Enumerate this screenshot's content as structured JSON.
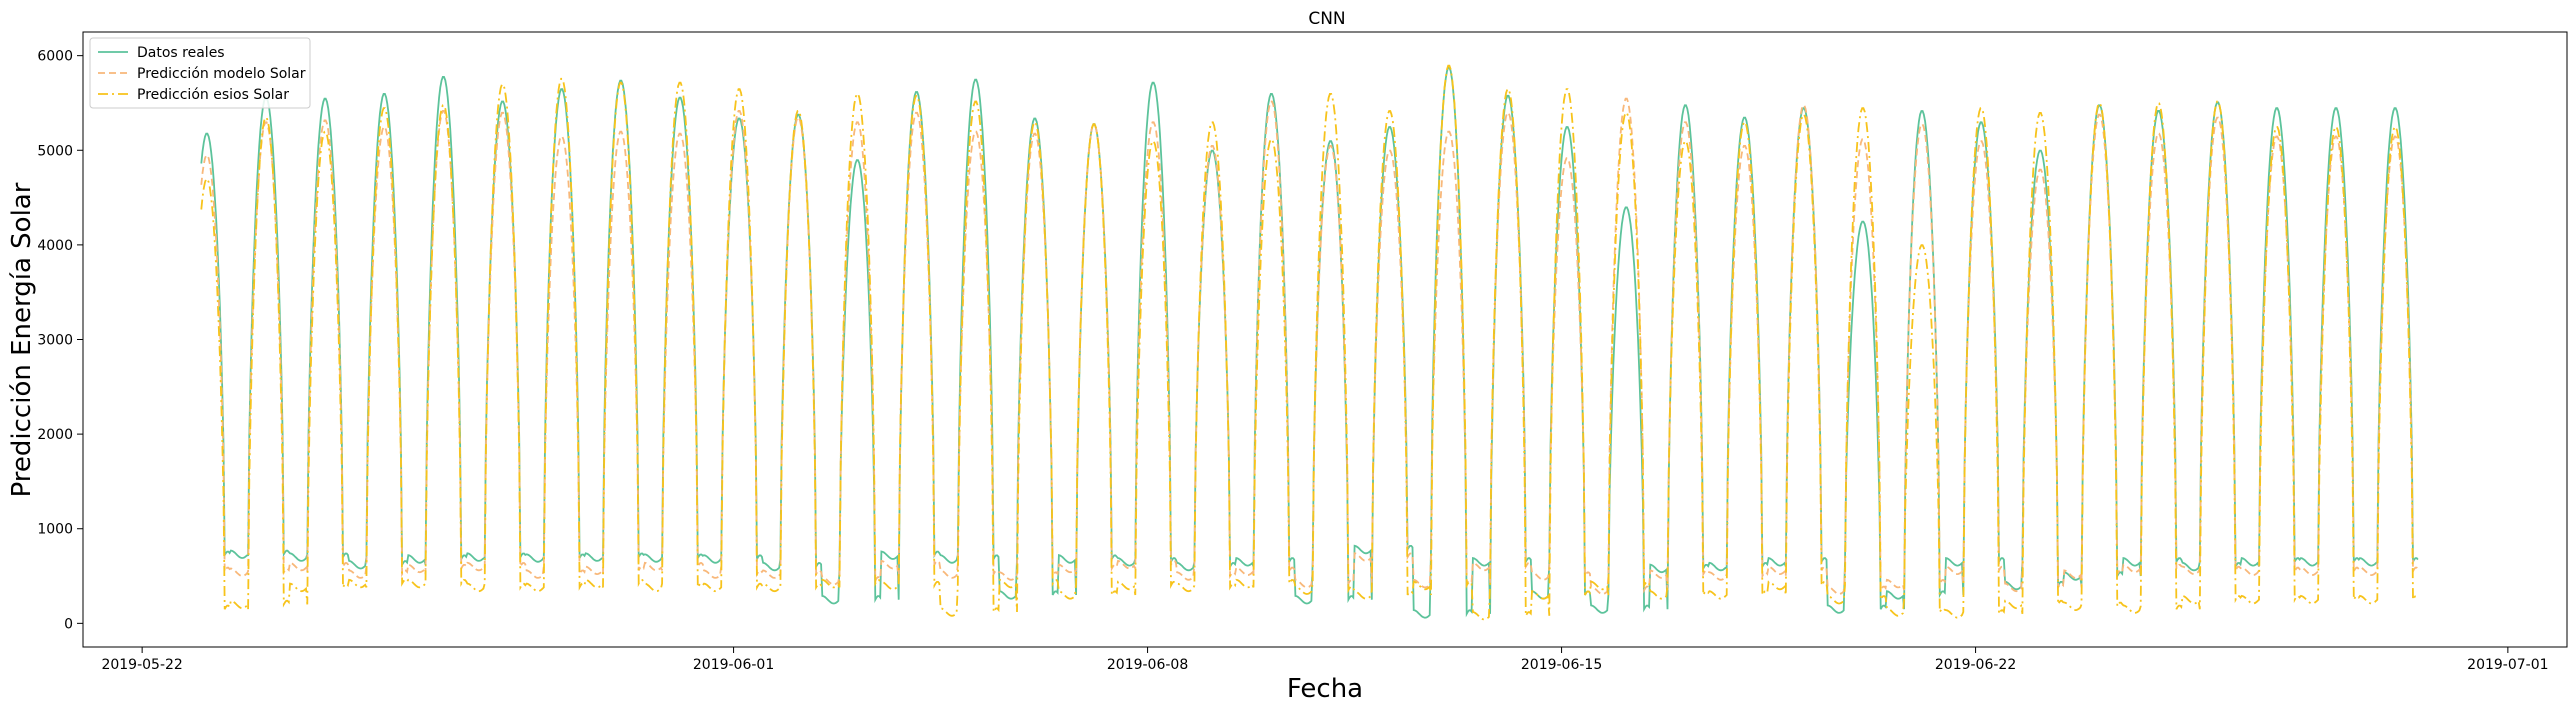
{
  "chart_data": {
    "type": "line",
    "title": "CNN",
    "xlabel": "Fecha",
    "ylabel": "Predicción Energía Solar",
    "xlim": [
      "2019-05-21",
      "2019-07-02"
    ],
    "ylim": [
      -250,
      6250
    ],
    "x_ticks": [
      "2019-05-22",
      "2019-06-01",
      "2019-06-08",
      "2019-06-15",
      "2019-06-22",
      "2019-07-01"
    ],
    "y_ticks": [
      0,
      1000,
      2000,
      3000,
      4000,
      5000,
      6000
    ],
    "grid": false,
    "legend_position": "top-left",
    "x_start": "2019-05-23",
    "x_end": "2019-06-30",
    "series": [
      {
        "name": "Datos reales",
        "color": "#5cc39b",
        "style": "solid",
        "daily_peaks": [
          5180,
          5560,
          5550,
          5600,
          5780,
          5520,
          5650,
          5740,
          5560,
          5340,
          5380,
          4900,
          5620,
          5750,
          5340,
          5280,
          5720,
          5000,
          5600,
          5100,
          5250,
          5880,
          5580,
          5250,
          4400,
          5480,
          5350,
          5450,
          4250,
          5420,
          5300,
          5000,
          5480,
          5420,
          5510,
          5450
        ],
        "daily_troughs": [
          720,
          730,
          700,
          620,
          680,
          700,
          690,
          700,
          690,
          680,
          600,
          250,
          720,
          680,
          300,
          680,
          650,
          600,
          650,
          250,
          780,
          100,
          650,
          300,
          150,
          580,
          600,
          650,
          150,
          300,
          650,
          400,
          500,
          650,
          600,
          650
        ]
      },
      {
        "name": "Predicción modelo Solar",
        "color": "#f8b87a",
        "style": "dashed",
        "daily_peaks": [
          4950,
          5300,
          5320,
          5250,
          5420,
          5400,
          5150,
          5200,
          5180,
          5420,
          5350,
          5300,
          5400,
          5200,
          5180,
          5280,
          5300,
          5050,
          5520,
          5050,
          5000,
          5200,
          5400,
          4920,
          5550,
          5300,
          5050,
          5480,
          5120,
          5280,
          5100,
          4800,
          5380,
          5180,
          5350,
          5150
        ],
        "daily_troughs": [
          550,
          540,
          600,
          520,
          580,
          600,
          520,
          560,
          600,
          520,
          520,
          450,
          620,
          520,
          500,
          580,
          620,
          500,
          550,
          420,
          700,
          420,
          600,
          500,
          350,
          520,
          500,
          560,
          350,
          420,
          560,
          380,
          520,
          580,
          560,
          550
        ]
      },
      {
        "name": "Predicción esios Solar",
        "color": "#f7c31b",
        "style": "dashdot",
        "daily_peaks": [
          4700,
          5350,
          5200,
          5450,
          5480,
          5700,
          5760,
          5720,
          5720,
          5650,
          5420,
          5600,
          5580,
          5520,
          5300,
          5280,
          5100,
          5300,
          5120,
          5600,
          5420,
          5900,
          5650,
          5650,
          5400,
          5100,
          5300,
          5380,
          5450,
          4000,
          5450,
          5400,
          5500,
          5500,
          5520,
          5250
        ],
        "daily_troughs": [
          150,
          200,
          380,
          420,
          420,
          380,
          380,
          420,
          380,
          380,
          380,
          420,
          400,
          120,
          420,
          300,
          400,
          380,
          420,
          350,
          300,
          400,
          80,
          300,
          400,
          300,
          300,
          400,
          250,
          120,
          100,
          200,
          180,
          150,
          250,
          250
        ]
      }
    ]
  }
}
